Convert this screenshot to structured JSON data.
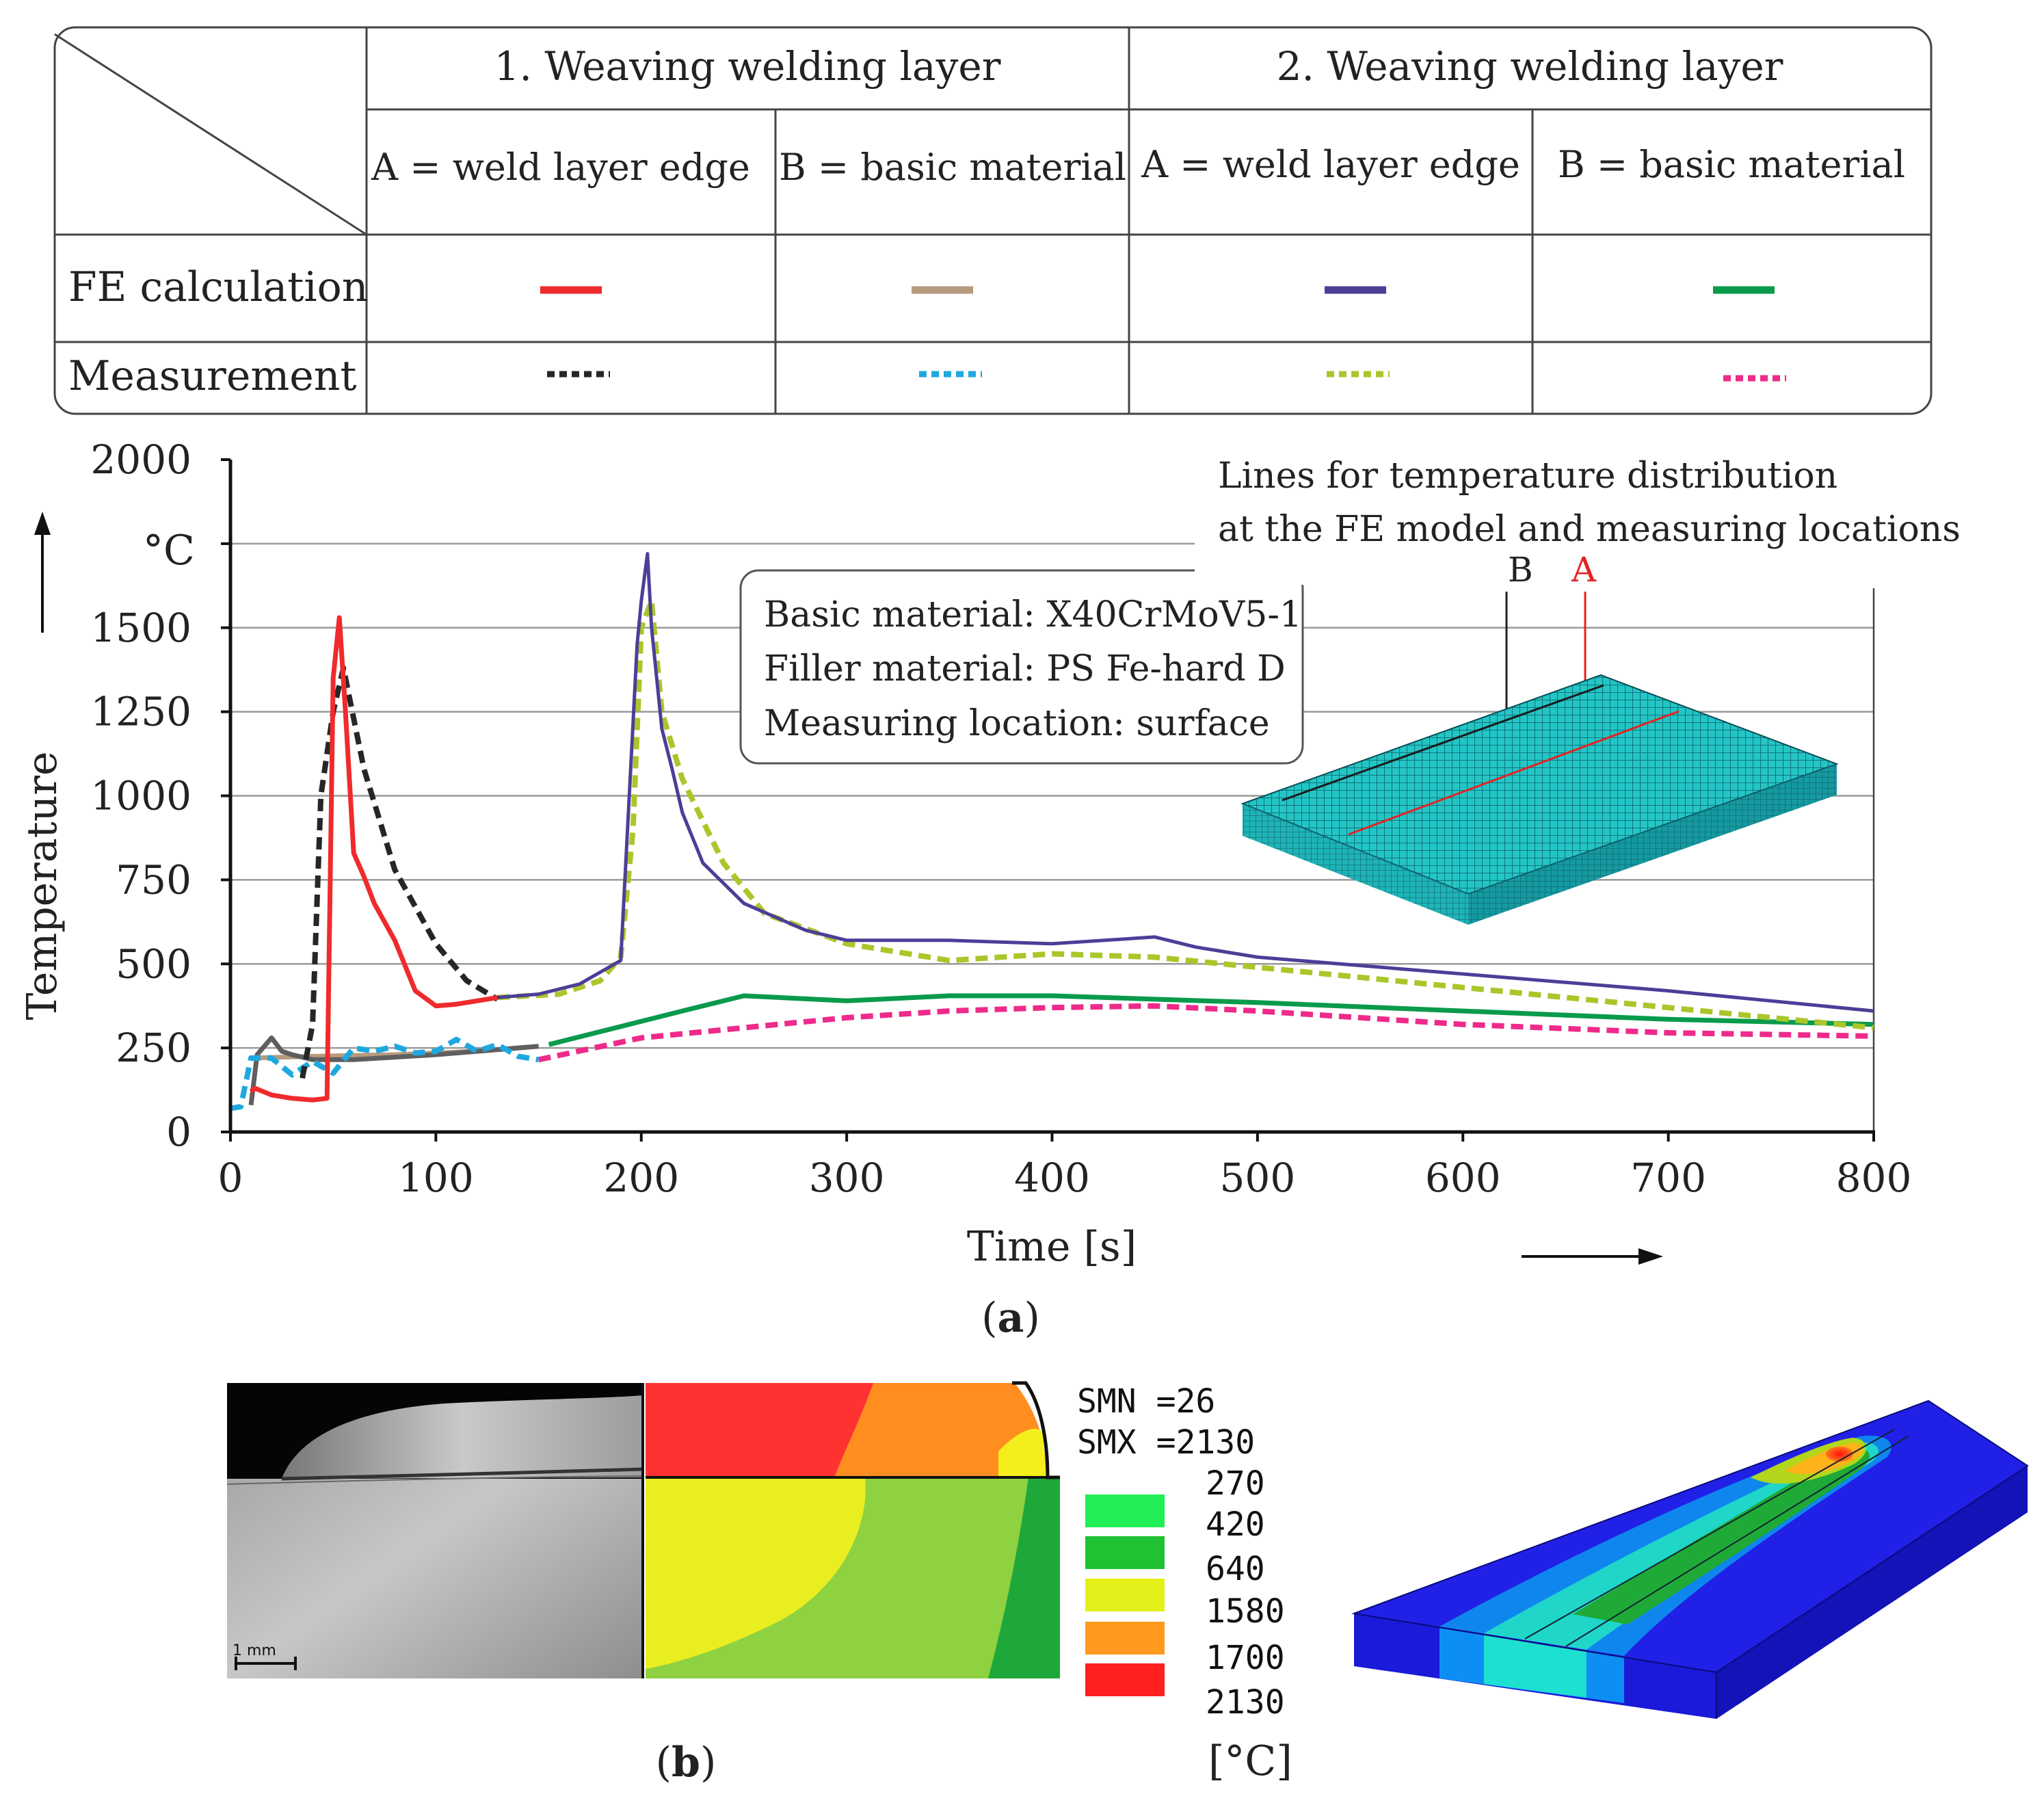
{
  "legend_table": {
    "group_1": "1. Weaving welding layer",
    "group_2": "2. Weaving welding layer",
    "col_1a": "A = weld layer edge",
    "col_1b": "B = basic  material",
    "col_2a": "A = weld layer edge",
    "col_2b": "B = basic  material",
    "row_fe": "FE calculation",
    "row_meas": "Measurement"
  },
  "colors": {
    "layer1_A_fe": "#ef2b2d",
    "layer1_B_fe": "#b79b7e",
    "layer2_A_fe": "#4b3f98",
    "layer2_B_fe": "#0a9a4b",
    "layer1_A_meas": "#262626",
    "layer1_B_meas": "#1fa8e0",
    "layer2_A_meas": "#a9c72a",
    "layer2_B_meas": "#ee2a8a",
    "mesh": "#1fbfbf",
    "grey_curve": "#5f5f5f"
  },
  "chart_data": {
    "type": "line",
    "title": "",
    "xlabel": "Time  [s]",
    "ylabel": "Temperature",
    "y_unit_label": "°C",
    "xlim": [
      0,
      800
    ],
    "ylim": [
      0,
      2000
    ],
    "xticks": [
      0,
      100,
      200,
      300,
      400,
      500,
      600,
      700,
      800
    ],
    "yticks": [
      0,
      250,
      500,
      750,
      1000,
      1250,
      1500,
      2000
    ],
    "grid": true,
    "series": [
      {
        "name": "1. layer A FE calculation",
        "color": "#ef2b2d",
        "dash": false,
        "x": [
          10,
          12,
          20,
          30,
          40,
          47,
          50,
          53,
          56,
          60,
          65,
          70,
          80,
          90,
          100,
          110,
          120,
          130
        ],
        "y": [
          120,
          130,
          110,
          100,
          95,
          100,
          1350,
          1530,
          1250,
          830,
          760,
          680,
          570,
          420,
          375,
          380,
          390,
          400
        ]
      },
      {
        "name": "1. layer B FE calculation",
        "color": "#b79b7e",
        "dash": false,
        "x": [
          10,
          40,
          80,
          120,
          150
        ],
        "y": [
          220,
          225,
          230,
          240,
          255
        ]
      },
      {
        "name": "1. layer A grey FE",
        "color": "#5f5f5f",
        "dash": false,
        "x": [
          10,
          13,
          20,
          25,
          30,
          40,
          60,
          100,
          150
        ],
        "y": [
          80,
          230,
          280,
          240,
          230,
          215,
          215,
          230,
          255
        ]
      },
      {
        "name": "2. layer A FE calculation",
        "color": "#4b3f98",
        "dash": false,
        "x": [
          130,
          150,
          170,
          190,
          198,
          200,
          203,
          205,
          210,
          215,
          220,
          230,
          250,
          280,
          300,
          350,
          400,
          450,
          470,
          500,
          600,
          700,
          800
        ],
        "y": [
          400,
          410,
          440,
          510,
          1450,
          1580,
          1720,
          1500,
          1200,
          1080,
          950,
          800,
          680,
          600,
          570,
          570,
          560,
          580,
          550,
          520,
          470,
          420,
          360
        ]
      },
      {
        "name": "2. layer B FE calculation",
        "color": "#0a9a4b",
        "dash": false,
        "x": [
          155,
          220,
          250,
          300,
          350,
          400,
          500,
          600,
          700,
          800
        ],
        "y": [
          260,
          360,
          405,
          390,
          405,
          405,
          385,
          360,
          335,
          320
        ]
      },
      {
        "name": "1. layer A Measurement",
        "color": "#262626",
        "dash": true,
        "x": [
          35,
          40,
          44,
          50,
          55,
          65,
          80,
          100,
          115,
          130
        ],
        "y": [
          160,
          320,
          1000,
          1250,
          1380,
          1080,
          780,
          560,
          450,
          395
        ]
      },
      {
        "name": "1. layer B Measurement",
        "color": "#1fa8e0",
        "dash": true,
        "x": [
          0,
          5,
          10,
          20,
          30,
          40,
          50,
          60,
          70,
          80,
          90,
          100,
          110,
          120,
          130,
          140,
          150
        ],
        "y": [
          70,
          75,
          220,
          220,
          170,
          210,
          175,
          250,
          240,
          255,
          235,
          240,
          275,
          240,
          260,
          225,
          215
        ]
      },
      {
        "name": "2. layer A Measurement",
        "color": "#a9c72a",
        "dash": true,
        "x": [
          130,
          160,
          180,
          190,
          196,
          200,
          205,
          210,
          220,
          240,
          260,
          300,
          350,
          400,
          450,
          500,
          600,
          700,
          800
        ],
        "y": [
          400,
          410,
          450,
          520,
          900,
          1500,
          1580,
          1250,
          1050,
          800,
          650,
          560,
          510,
          530,
          520,
          490,
          430,
          370,
          310
        ]
      },
      {
        "name": "2. layer B Measurement",
        "color": "#ee2a8a",
        "dash": true,
        "x": [
          150,
          200,
          250,
          300,
          350,
          400,
          450,
          500,
          600,
          700,
          800
        ],
        "y": [
          215,
          280,
          310,
          340,
          360,
          370,
          375,
          360,
          320,
          295,
          285
        ]
      }
    ],
    "info_box": [
      "Basic material: X40CrMoV5-1",
      "Filler material: PS Fe-hard D",
      "Measuring location: surface"
    ],
    "mesh_note_line1": "Lines for temperature distribution",
    "mesh_note_line2": "at the FE model and measuring locations",
    "mesh_label_b": "B",
    "mesh_label_a": "A"
  },
  "panel_a_caption": "a",
  "panel_b_caption": "b",
  "scale_bar_label": "1 mm",
  "contour_legend": {
    "smn": "SMN =26",
    "smx": "SMX =2130",
    "levels": [
      "270",
      "420",
      "640",
      "1580",
      "1700",
      "2130"
    ],
    "swatches": [
      {
        "color": "#22ee55",
        "level": "270-420"
      },
      {
        "color": "#1fc232",
        "level": "420-640"
      },
      {
        "color": "#e4f01a",
        "level": "640-1580"
      },
      {
        "color": "#ff9a1f",
        "level": "1580-1700"
      },
      {
        "color": "#ff2020",
        "level": "1700-2130"
      }
    ],
    "unit": "[°C]"
  }
}
